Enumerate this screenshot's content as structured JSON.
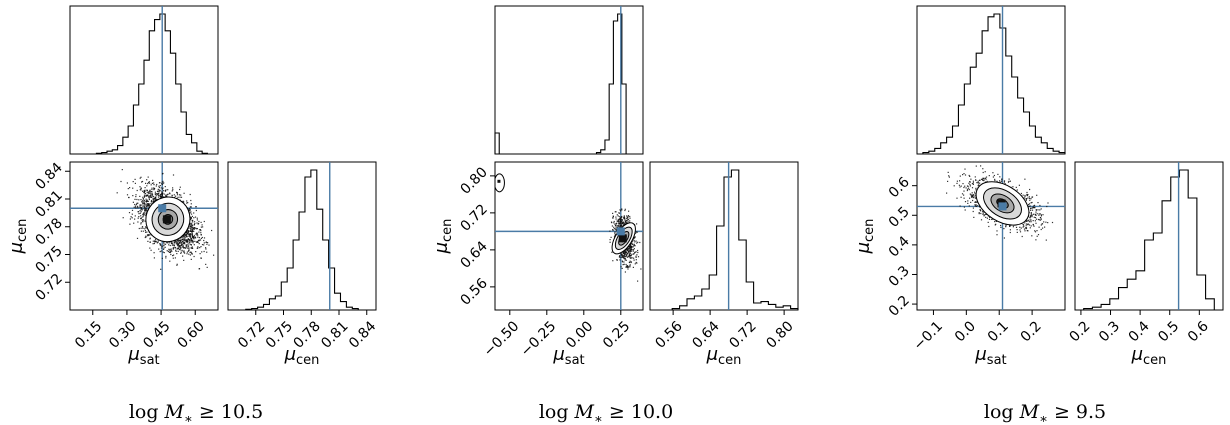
{
  "chart_data": [
    {
      "type": "corner",
      "caption": "log M_* ≥ 10.5",
      "caption_parts": {
        "log": "log",
        "M": "M",
        "sub": "∗",
        "rel": "≥",
        "val": "10.5"
      },
      "truth_color": "#4a7ba6",
      "params": [
        {
          "id": "mu_sat",
          "sym": "μ",
          "sub": "sat",
          "range": [
            0.05,
            0.7
          ],
          "ticks": [
            "0.15",
            "0.30",
            "0.45",
            "0.60"
          ],
          "tick_values": [
            0.15,
            0.3,
            0.45,
            0.6
          ],
          "truth": 0.455
        },
        {
          "id": "mu_cen",
          "sym": "μ",
          "sub": "cen",
          "range": [
            0.69,
            0.85
          ],
          "ticks": [
            "0.72",
            "0.75",
            "0.78",
            "0.81",
            "0.84"
          ],
          "tick_values": [
            0.72,
            0.75,
            0.78,
            0.81,
            0.84
          ],
          "truth": 0.8
        }
      ],
      "hist_x": [
        0.0,
        0.0,
        0.0,
        0.0,
        0.0,
        0.005,
        0.01,
        0.02,
        0.03,
        0.06,
        0.12,
        0.2,
        0.35,
        0.5,
        0.67,
        0.88,
        0.96,
        1.0,
        0.88,
        0.72,
        0.5,
        0.3,
        0.14,
        0.08,
        0.02,
        0.005,
        0.0,
        0.0
      ],
      "hist_y": [
        0.0,
        0.0,
        0.0,
        0.005,
        0.01,
        0.02,
        0.04,
        0.08,
        0.1,
        0.2,
        0.3,
        0.5,
        0.7,
        0.95,
        1.0,
        0.72,
        0.5,
        0.3,
        0.12,
        0.06,
        0.02,
        0.01,
        0.0,
        0.0,
        0.0
      ],
      "peak": [
        0.48,
        0.788
      ],
      "spread": [
        0.06,
        0.016
      ],
      "corr": -0.45,
      "n_points": 3000,
      "outlier": false
    },
    {
      "type": "corner",
      "caption": "log M_* ≥ 10.0",
      "caption_parts": {
        "log": "log",
        "M": "M",
        "sub": "∗",
        "rel": "≥",
        "val": "10.0"
      },
      "truth_color": "#4a7ba6",
      "params": [
        {
          "id": "mu_sat",
          "sym": "μ",
          "sub": "sat",
          "range": [
            -0.6,
            0.4
          ],
          "ticks": [
            "−0.50",
            "−0.25",
            "0.00",
            "0.25"
          ],
          "tick_values": [
            -0.5,
            -0.25,
            0.0,
            0.25
          ],
          "truth": 0.25
        },
        {
          "id": "mu_cen",
          "sym": "μ",
          "sub": "cen",
          "range": [
            0.51,
            0.83
          ],
          "ticks": [
            "0.56",
            "0.64",
            "0.72",
            "0.80"
          ],
          "tick_values": [
            0.56,
            0.64,
            0.72,
            0.8
          ],
          "truth": 0.68
        }
      ],
      "hist_x": [
        0.15,
        0.0,
        0.0,
        0.0,
        0.0,
        0.0,
        0.0,
        0.0,
        0.0,
        0.0,
        0.0,
        0.0,
        0.0,
        0.0,
        0.0,
        0.0,
        0.0,
        0.0,
        0.0,
        0.0,
        0.0,
        0.0,
        0.0,
        0.0,
        0.01,
        0.03,
        0.1,
        0.5,
        0.95,
        1.0,
        0.5,
        0.0,
        0.0,
        0.0,
        0.0
      ],
      "hist_y": [
        0.0,
        0.0,
        0.0,
        0.01,
        0.03,
        0.08,
        0.1,
        0.15,
        0.25,
        0.6,
        0.95,
        1.0,
        0.5,
        0.2,
        0.05,
        0.06,
        0.04,
        0.02,
        0.03,
        0.01
      ],
      "peak": [
        0.27,
        0.665
      ],
      "spread": [
        0.035,
        0.025
      ],
      "corr": -0.3,
      "n_points": 900,
      "outlier": true,
      "outlier_point": [
        -0.57,
        0.785
      ]
    },
    {
      "type": "corner",
      "caption": "log M_* ≥ 9.5",
      "caption_parts": {
        "log": "log",
        "M": "M",
        "sub": "∗",
        "rel": "≥",
        "val": "9.5"
      },
      "truth_color": "#4a7ba6",
      "params": [
        {
          "id": "mu_sat",
          "sym": "μ",
          "sub": "sat",
          "range": [
            -0.15,
            0.3
          ],
          "ticks": [
            "−0.1",
            "0.0",
            "0.1",
            "0.2"
          ],
          "tick_values": [
            -0.1,
            0.0,
            0.1,
            0.2
          ],
          "truth": 0.11
        },
        {
          "id": "mu_cen",
          "sym": "μ",
          "sub": "cen",
          "range": [
            0.18,
            0.68
          ],
          "ticks": [
            "0.2",
            "0.3",
            "0.4",
            "0.5",
            "0.6"
          ],
          "tick_values": [
            0.2,
            0.3,
            0.4,
            0.5,
            0.6
          ],
          "truth": 0.53
        }
      ],
      "hist_x": [
        0.0,
        0.01,
        0.02,
        0.04,
        0.08,
        0.12,
        0.2,
        0.35,
        0.5,
        0.62,
        0.72,
        0.88,
        0.98,
        1.0,
        0.9,
        0.7,
        0.55,
        0.4,
        0.3,
        0.2,
        0.12,
        0.08,
        0.04,
        0.02,
        0.01
      ],
      "hist_y": [
        0.0,
        0.01,
        0.02,
        0.04,
        0.08,
        0.16,
        0.22,
        0.28,
        0.5,
        0.55,
        0.78,
        0.95,
        1.0,
        0.8,
        0.25,
        0.08,
        0.0
      ],
      "peak": [
        0.11,
        0.54
      ],
      "spread": [
        0.055,
        0.04
      ],
      "corr": -0.55,
      "n_points": 1400,
      "outlier": false
    }
  ]
}
